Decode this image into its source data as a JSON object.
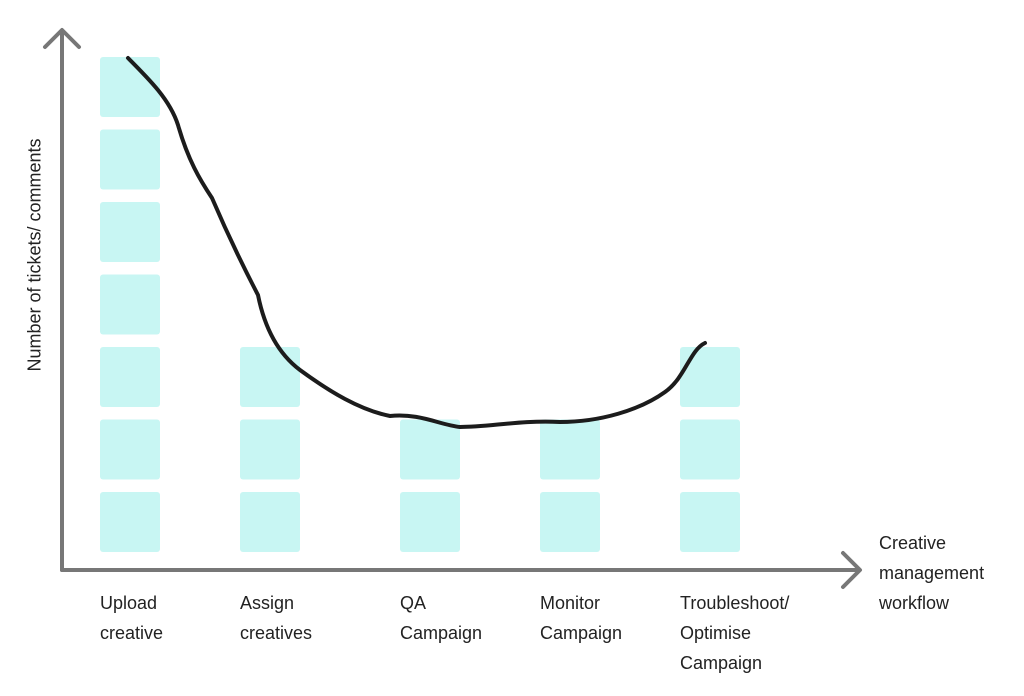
{
  "chart_data": {
    "type": "bar",
    "x_label": "Creative\nmanagement\nworkflow",
    "y_label": "Number of tickets/ comments",
    "categories": [
      "Upload\ncreative",
      "Assign\ncreatives",
      "QA\nCampaign",
      "Monitor\nCampaign",
      "Troubleshoot/\nOptimise\nCampaign"
    ],
    "values": [
      7,
      3,
      2,
      2,
      3
    ],
    "color": "#c8f6f3"
  }
}
